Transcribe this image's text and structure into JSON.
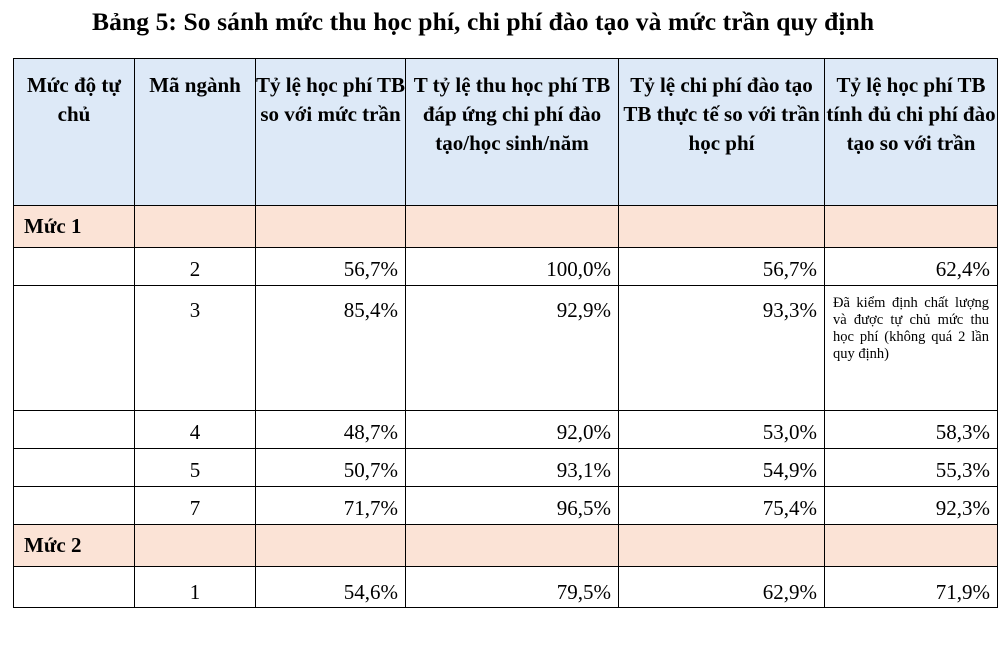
{
  "title": "Bảng 5: So sánh mức thu học phí, chi phí đào tạo và mức trần quy định",
  "headers": [
    "Mức độ tự chủ",
    "Mã ngành",
    "Tỷ lệ học phí TB so với mức trần",
    "T tỷ lệ thu học phí TB đáp ứng chi phí đào tạo/học sinh/năm",
    "Tỷ lệ chi phí đào tạo TB thực tế so với trần học phí",
    "Tỷ lệ học phí TB tính đủ chi phí đào tạo so với trần"
  ],
  "groups": [
    {
      "label": "Mức 1",
      "rows": [
        {
          "code": "2",
          "fee_vs_cap": "56,7%",
          "fee_covers_cost": "100,0%",
          "cost_vs_cap": "56,7%",
          "full_cost_fee_vs_cap": "62,4%"
        },
        {
          "code": "3",
          "fee_vs_cap": "85,4%",
          "fee_covers_cost": "92,9%",
          "cost_vs_cap": "93,3%",
          "full_cost_fee_vs_cap": "Đã kiểm định chất lượng và được tự chủ mức thu học phí (không quá 2 lần quy định)"
        },
        {
          "code": "4",
          "fee_vs_cap": "48,7%",
          "fee_covers_cost": "92,0%",
          "cost_vs_cap": "53,0%",
          "full_cost_fee_vs_cap": "58,3%"
        },
        {
          "code": "5",
          "fee_vs_cap": "50,7%",
          "fee_covers_cost": "93,1%",
          "cost_vs_cap": "54,9%",
          "full_cost_fee_vs_cap": "55,3%"
        },
        {
          "code": "7",
          "fee_vs_cap": "71,7%",
          "fee_covers_cost": "96,5%",
          "cost_vs_cap": "75,4%",
          "full_cost_fee_vs_cap": "92,3%"
        }
      ]
    },
    {
      "label": "Mức 2",
      "rows": [
        {
          "code": "1",
          "fee_vs_cap": "54,6%",
          "fee_covers_cost": "79,5%",
          "cost_vs_cap": "62,9%",
          "full_cost_fee_vs_cap": "71,9%"
        }
      ]
    }
  ]
}
